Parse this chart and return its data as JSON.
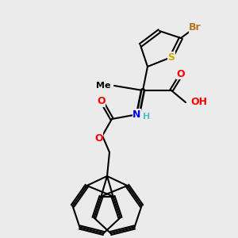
{
  "background_color": "#ebebeb",
  "bond_color": "#000000",
  "bond_width": 1.5,
  "atom_colors": {
    "Br": "#b8732a",
    "S": "#ccaa00",
    "O": "#ff0000",
    "N": "#0000ee",
    "C": "#000000",
    "H": "#4ec4c4"
  },
  "font_size": 9,
  "font_size_small": 8
}
